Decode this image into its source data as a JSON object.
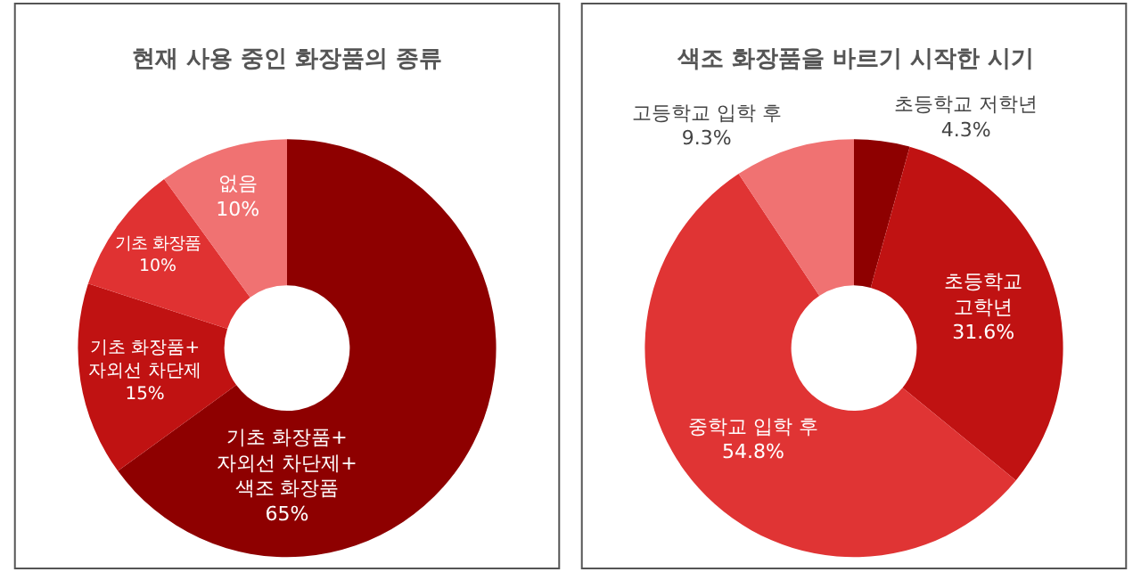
{
  "chart_data": [
    {
      "type": "donut",
      "title": "현재 사용 중인 화장품의 종류",
      "categories": [
        "기초 화장품+\n자외선 차단제+\n색조 화장품",
        "기초 화장품+\n자외선 차단제",
        "기초 화장품",
        "없음"
      ],
      "values": [
        65,
        15,
        10,
        10
      ],
      "value_labels": [
        "65%",
        "15%",
        "10%",
        "10%"
      ],
      "colors": [
        "#8e0000",
        "#c01212",
        "#e03232",
        "#f07272"
      ]
    },
    {
      "type": "donut",
      "title": "색조 화장품을 바르기 시작한 시기",
      "categories": [
        "초등학교 저학년",
        "초등학교\n고학년",
        "중학교 입학 후",
        "고등학교 입학 후"
      ],
      "values": [
        4.3,
        31.6,
        54.8,
        9.3
      ],
      "value_labels": [
        "4.3%",
        "31.6%",
        "54.8%",
        "9.3%"
      ],
      "colors": [
        "#8e0000",
        "#c01212",
        "#e03434",
        "#f07272"
      ]
    }
  ]
}
